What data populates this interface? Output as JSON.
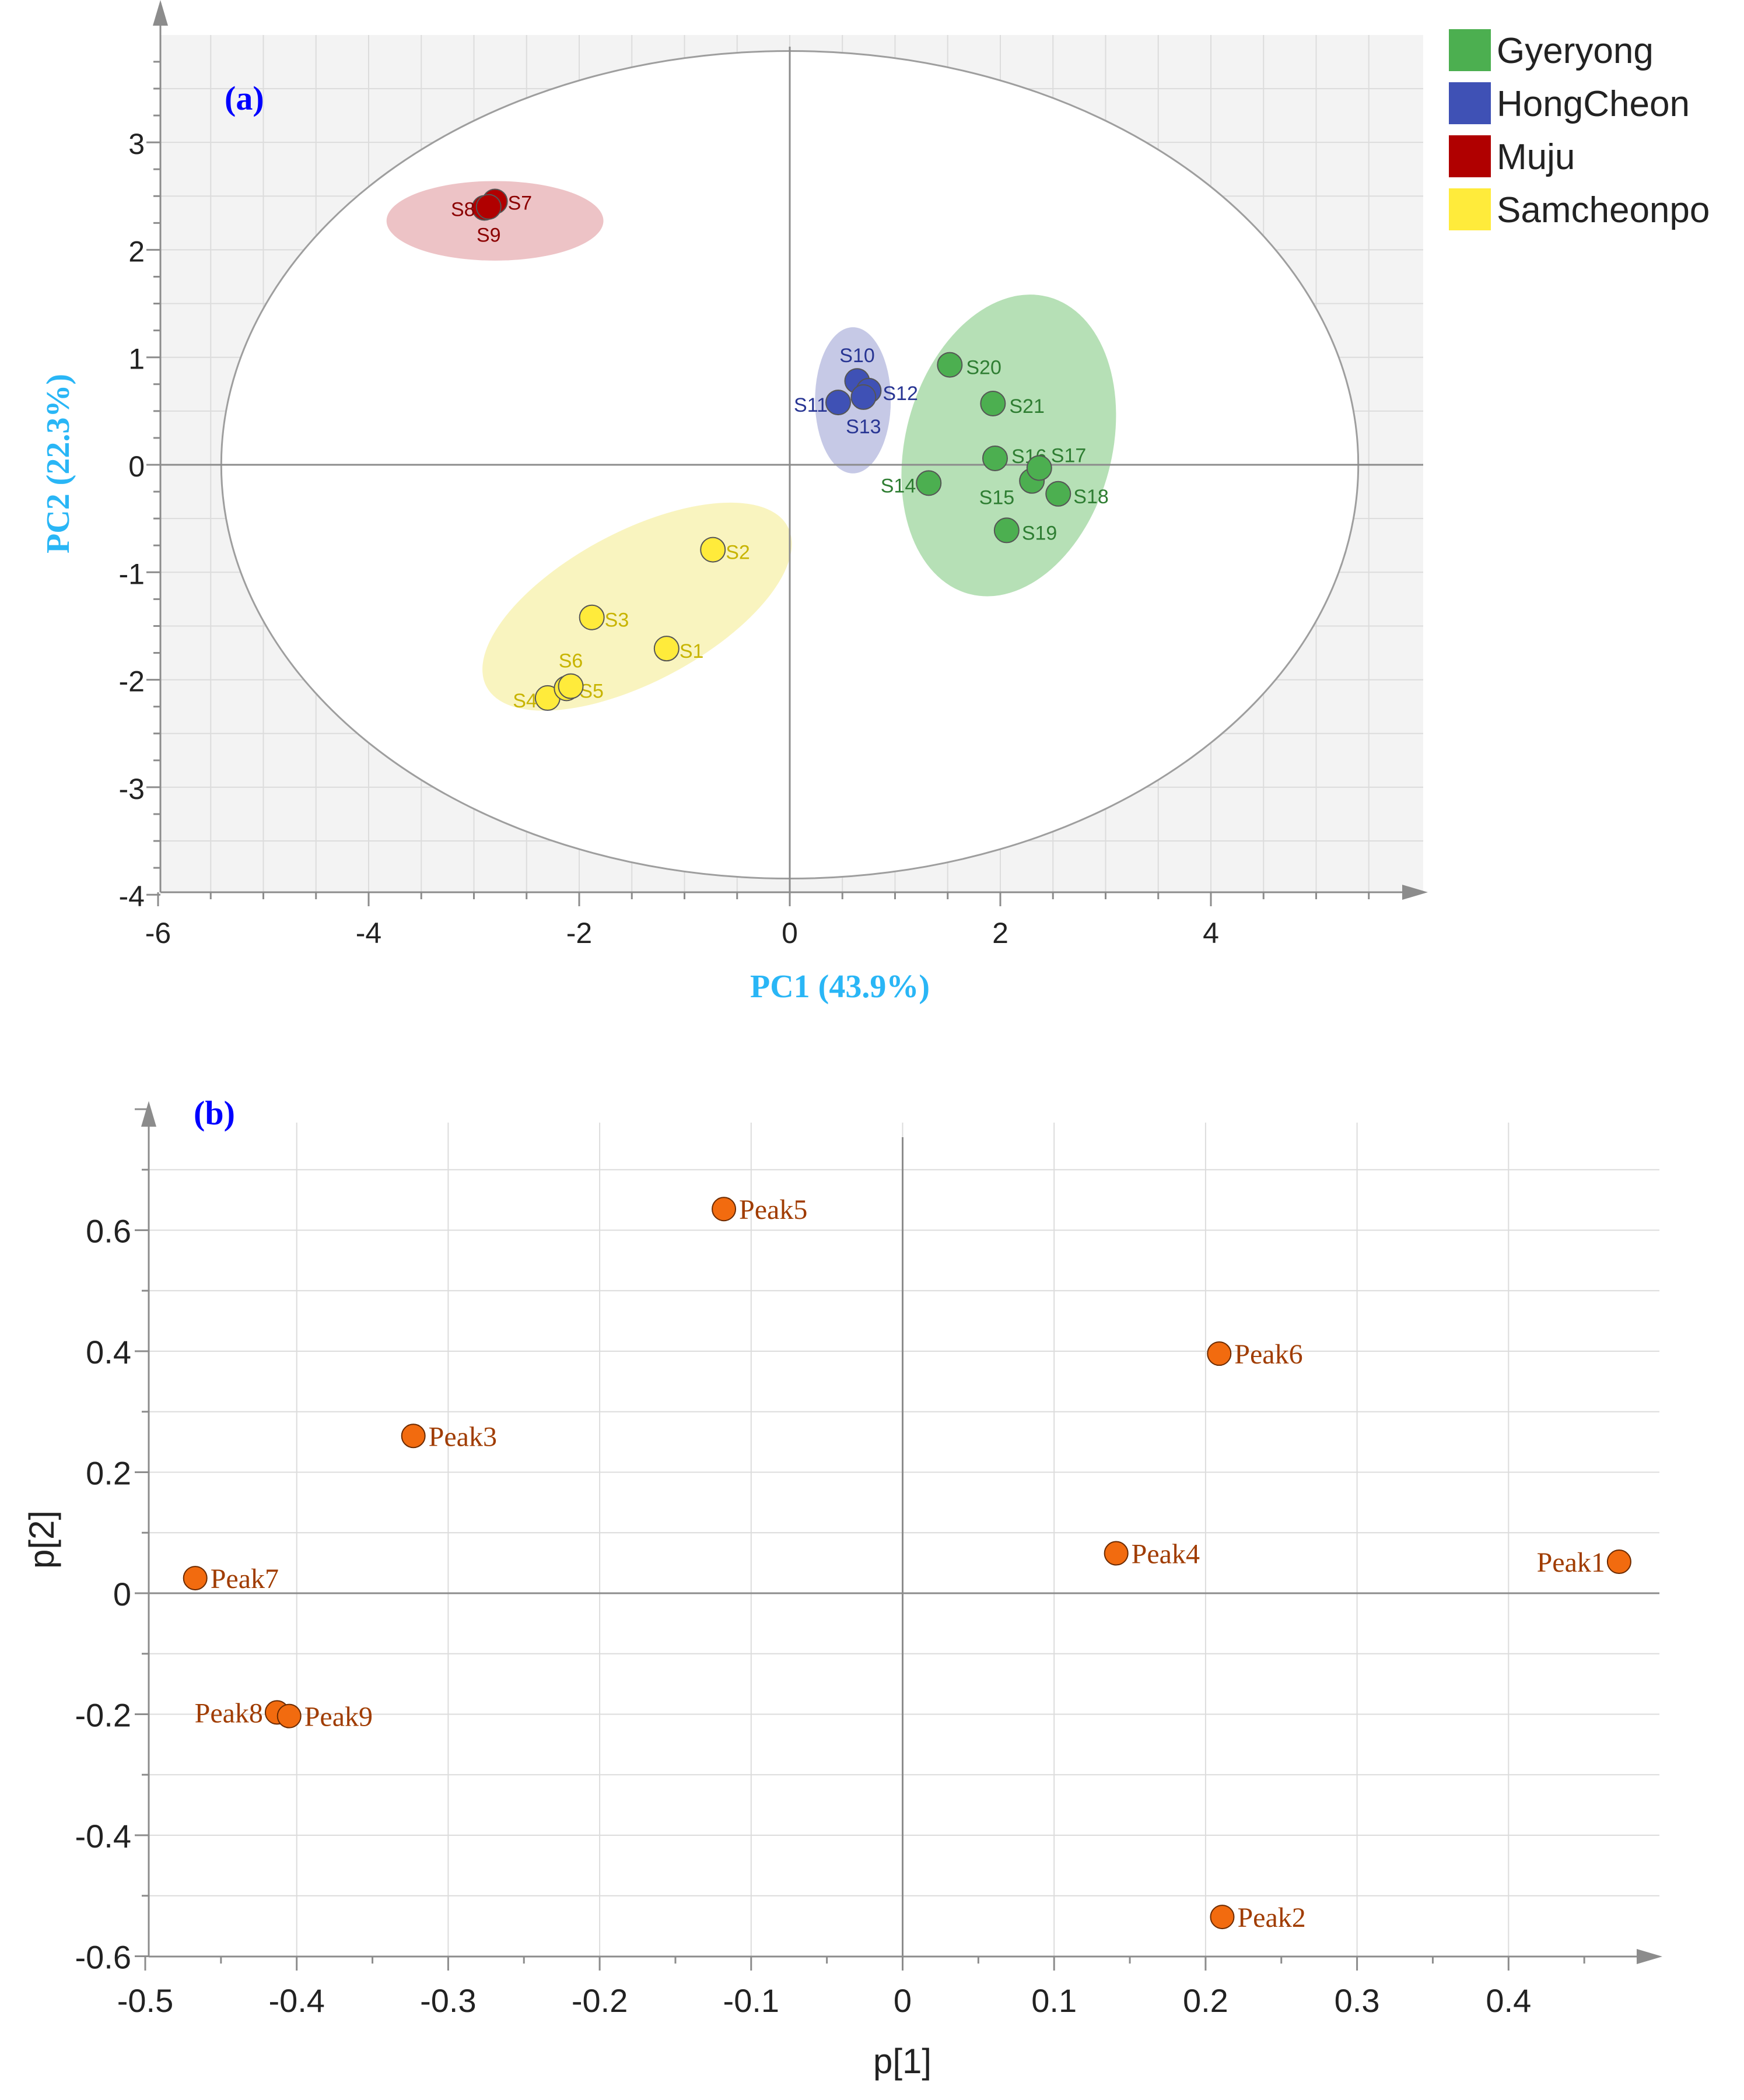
{
  "chart_data": [
    {
      "type": "scatter",
      "panel_label": "(a)",
      "title": "",
      "xlabel": "PC1 (43.9%)",
      "ylabel": "PC2 (22.3%)",
      "xlim": [
        -6,
        6
      ],
      "ylim": [
        -4,
        4
      ],
      "xticks": [
        -6,
        -4,
        -2,
        0,
        2,
        4
      ],
      "xtick_labels": [
        "-6",
        "-4",
        "-2",
        "0",
        "2",
        "4"
      ],
      "yticks": [
        -4,
        -3,
        -2,
        -1,
        0,
        1,
        2,
        3
      ],
      "ytick_labels": [
        "-4",
        "-3",
        "-2",
        "-1",
        "0",
        "1",
        "2",
        "3"
      ],
      "grid": true,
      "legend_position": "top-right",
      "hotelling_ellipse": {
        "center": [
          0.0,
          0.0
        ],
        "rx": 5.4,
        "ry": 3.85
      },
      "groups": [
        {
          "name": "Gyeryong",
          "color": "#4CAF50",
          "ellipse_color": "#8fd08f",
          "label_color": "#2e7d32",
          "ellipse": {
            "cx": 2.08,
            "cy": 0.18,
            "rx": 0.98,
            "ry": 1.43,
            "angle": 15
          },
          "points": [
            {
              "label": "S14",
              "x": 1.32,
              "y": -0.17
            },
            {
              "label": "S15",
              "x": 2.3,
              "y": -0.15
            },
            {
              "label": "S16",
              "x": 1.95,
              "y": 0.06
            },
            {
              "label": "S17",
              "x": 2.37,
              "y": -0.03
            },
            {
              "label": "S18",
              "x": 2.55,
              "y": -0.27
            },
            {
              "label": "S19",
              "x": 2.06,
              "y": -0.61
            },
            {
              "label": "S20",
              "x": 1.52,
              "y": 0.93
            },
            {
              "label": "S21",
              "x": 1.93,
              "y": 0.57
            }
          ]
        },
        {
          "name": "HongCheon",
          "color": "#3F51B5",
          "ellipse_color": "#a7acd8",
          "label_color": "#283593",
          "ellipse": {
            "cx": 0.6,
            "cy": 0.6,
            "rx": 0.36,
            "ry": 0.68,
            "angle": 0
          },
          "points": [
            {
              "label": "S10",
              "x": 0.64,
              "y": 0.78
            },
            {
              "label": "S11",
              "x": 0.46,
              "y": 0.58
            },
            {
              "label": "S12",
              "x": 0.75,
              "y": 0.69
            },
            {
              "label": "S13",
              "x": 0.7,
              "y": 0.63
            }
          ]
        },
        {
          "name": "Muju",
          "color": "#B00000",
          "ellipse_color": "#e3a3a8",
          "label_color": "#8b0000",
          "ellipse": {
            "cx": -2.8,
            "cy": 2.27,
            "rx": 1.03,
            "ry": 0.37,
            "angle": 0
          },
          "points": [
            {
              "label": "S7",
              "x": -2.8,
              "y": 2.45
            },
            {
              "label": "S8",
              "x": -2.9,
              "y": 2.39
            },
            {
              "label": "S9",
              "x": -2.86,
              "y": 2.4
            }
          ]
        },
        {
          "name": "Samcheonpo",
          "color": "#FFEB3B",
          "ellipse_color": "#f6ee9c",
          "label_color": "#c8b400",
          "ellipse": {
            "cx": -1.45,
            "cy": -1.32,
            "rx": 1.62,
            "ry": 0.7,
            "angle": -28
          },
          "points": [
            {
              "label": "S1",
              "x": -1.17,
              "y": -1.71
            },
            {
              "label": "S2",
              "x": -0.73,
              "y": -0.79
            },
            {
              "label": "S3",
              "x": -1.88,
              "y": -1.42
            },
            {
              "label": "S4",
              "x": -2.3,
              "y": -2.17
            },
            {
              "label": "S5",
              "x": -2.12,
              "y": -2.08
            },
            {
              "label": "S6",
              "x": -2.08,
              "y": -2.06
            }
          ]
        }
      ]
    },
    {
      "type": "scatter",
      "panel_label": "(b)",
      "title": "",
      "xlabel": "p[1]",
      "ylabel": "p[2]",
      "xlim": [
        -0.5,
        0.5
      ],
      "ylim": [
        -0.6,
        0.8
      ],
      "xticks": [
        -0.5,
        -0.4,
        -0.3,
        -0.2,
        -0.1,
        0,
        0.1,
        0.2,
        0.3,
        0.4
      ],
      "xtick_labels": [
        "-0.5",
        "-0.4",
        "-0.3",
        "-0.2",
        "-0.1",
        "0",
        "0.1",
        "0.2",
        "0.3",
        "0.4"
      ],
      "yticks": [
        -0.6,
        -0.4,
        -0.2,
        0,
        0.2,
        0.4,
        0.6
      ],
      "ytick_labels": [
        "-0.6",
        "-0.4",
        "-0.2",
        "0",
        "0.2",
        "0.4",
        "0.6"
      ],
      "grid": true,
      "point_color": "#F26B0F",
      "label_color": "#A03C00",
      "points": [
        {
          "label": "Peak1",
          "x": 0.473,
          "y": 0.052,
          "label_side": "left"
        },
        {
          "label": "Peak2",
          "x": 0.211,
          "y": -0.535,
          "label_side": "right"
        },
        {
          "label": "Peak3",
          "x": -0.323,
          "y": 0.26,
          "label_side": "right"
        },
        {
          "label": "Peak4",
          "x": 0.141,
          "y": 0.066,
          "label_side": "right"
        },
        {
          "label": "Peak5",
          "x": -0.118,
          "y": 0.635,
          "label_side": "right"
        },
        {
          "label": "Peak6",
          "x": 0.209,
          "y": 0.396,
          "label_side": "right"
        },
        {
          "label": "Peak7",
          "x": -0.467,
          "y": 0.025,
          "label_side": "right"
        },
        {
          "label": "Peak8",
          "x": -0.413,
          "y": -0.197,
          "label_side": "left"
        },
        {
          "label": "Peak9",
          "x": -0.405,
          "y": -0.203,
          "label_side": "right"
        }
      ]
    }
  ]
}
